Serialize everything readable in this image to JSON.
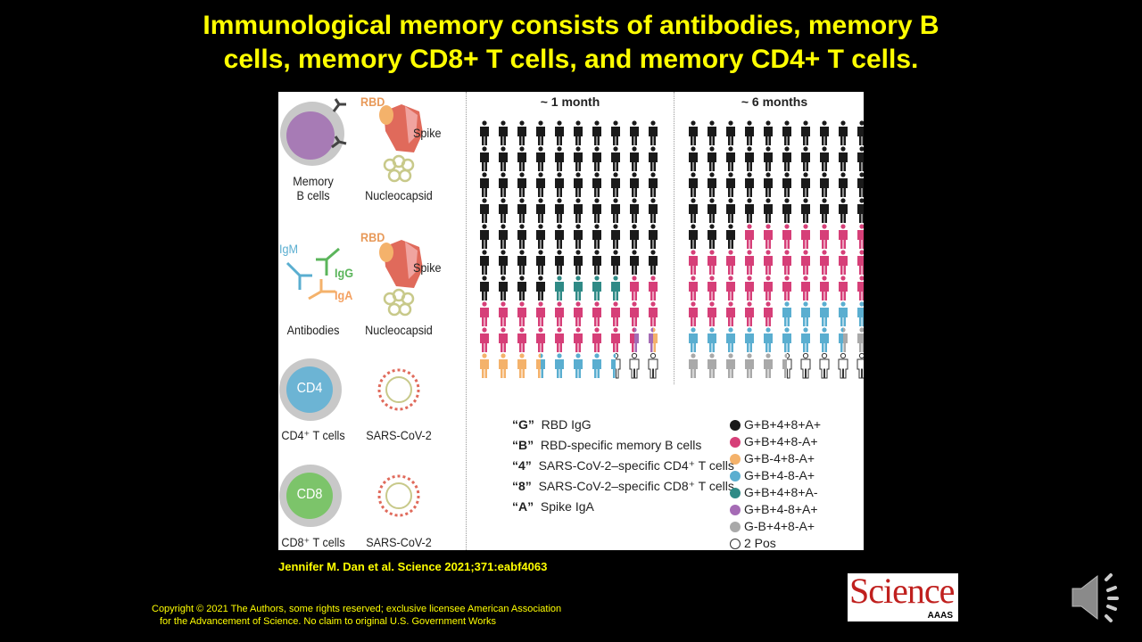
{
  "slide": {
    "title_line1": "Immunological memory consists of antibodies, memory B",
    "title_line2": "cells, memory CD8+ T cells, and memory CD4+ T cells.",
    "citation": "Jennifer M. Dan et al. Science 2021;371:eabf4063",
    "copyright_line1": "Copyright © 2021 The Authors, some rights reserved; exclusive licensee American Association",
    "copyright_line2": "for the Advancement of Science. No claim to original U.S. Government Works",
    "logo_text": "Science",
    "logo_sub": "AAAS",
    "audio_icon": "speaker-icon"
  },
  "left_panel": {
    "memory_b_line1": "Memory",
    "memory_b_line2": "B cells",
    "rbd": "RBD",
    "spike": "Spike",
    "nucleocapsid": "Nucleocapsid",
    "igm": "IgM",
    "igg": "IgG",
    "iga": "IgA",
    "antibodies": "Antibodies",
    "cd4": "CD4",
    "cd4_label": "CD4⁺ T cells",
    "cd8": "CD8",
    "cd8_label": "CD8⁺ T cells",
    "virus": "SARS-CoV-2"
  },
  "colors": {
    "K": "#1a1a1a",
    "P": "#d63f78",
    "O": "#f4b26b",
    "B": "#5aaed0",
    "T": "#2f8a86",
    "V": "#a56bb5",
    "G": "#a9a9a9",
    "W": "#ffffff"
  },
  "grids": [
    {
      "label": "~ 1 month",
      "rows": [
        [
          "K",
          "K",
          "K",
          "K",
          "K",
          "K",
          "K",
          "K",
          "K",
          "K"
        ],
        [
          "K",
          "K",
          "K",
          "K",
          "K",
          "K",
          "K",
          "K",
          "K",
          "K"
        ],
        [
          "K",
          "K",
          "K",
          "K",
          "K",
          "K",
          "K",
          "K",
          "K",
          "K"
        ],
        [
          "K",
          "K",
          "K",
          "K",
          "K",
          "K",
          "K",
          "K",
          "K",
          "K"
        ],
        [
          "K",
          "K",
          "K",
          "K",
          "K",
          "K",
          "K",
          "K",
          "K",
          "K"
        ],
        [
          "K",
          "K",
          "K",
          "K",
          "K",
          "K",
          "K",
          "K",
          "K",
          "K"
        ],
        [
          "K",
          "K",
          "K",
          "K",
          "T",
          "T",
          "T",
          "T",
          "P",
          "P"
        ],
        [
          "P",
          "P",
          "P",
          "P",
          "P",
          "P",
          "P",
          "P",
          "P",
          "P"
        ],
        [
          "P",
          "P",
          "P",
          "P",
          "P",
          "P",
          "P",
          "P",
          "P/V",
          "V/O"
        ],
        [
          "O",
          "O",
          "O",
          "O/B",
          "B",
          "B",
          "B",
          "B/W",
          "W",
          "W"
        ]
      ]
    },
    {
      "label": "~ 6 months",
      "rows": [
        [
          "K",
          "K",
          "K",
          "K",
          "K",
          "K",
          "K",
          "K",
          "K",
          "K"
        ],
        [
          "K",
          "K",
          "K",
          "K",
          "K",
          "K",
          "K",
          "K",
          "K",
          "K"
        ],
        [
          "K",
          "K",
          "K",
          "K",
          "K",
          "K",
          "K",
          "K",
          "K",
          "K"
        ],
        [
          "K",
          "K",
          "K",
          "K",
          "K",
          "K",
          "K",
          "K",
          "K",
          "K"
        ],
        [
          "K",
          "K",
          "K",
          "P",
          "P",
          "P",
          "P",
          "P",
          "P",
          "P"
        ],
        [
          "P",
          "P",
          "P",
          "P",
          "P",
          "P",
          "P",
          "P",
          "P",
          "P"
        ],
        [
          "P",
          "P",
          "P",
          "P",
          "P",
          "P",
          "P",
          "P",
          "P",
          "P"
        ],
        [
          "P",
          "P",
          "P",
          "P",
          "P",
          "B",
          "B",
          "B",
          "B",
          "B"
        ],
        [
          "B",
          "B",
          "B",
          "B",
          "B",
          "B",
          "B",
          "B",
          "B/G",
          "G"
        ],
        [
          "G",
          "G",
          "G",
          "G",
          "G",
          "G/W",
          "W",
          "W",
          "W",
          "W"
        ]
      ]
    }
  ],
  "key": [
    {
      "letter": "G",
      "text": "RBD IgG"
    },
    {
      "letter": "B",
      "text": "RBD-specific memory B cells"
    },
    {
      "letter": "4",
      "text": "SARS-CoV-2–specific CD4⁺ T cells"
    },
    {
      "letter": "8",
      "text": "SARS-CoV-2–specific CD8⁺ T cells"
    },
    {
      "letter": "A",
      "text": "Spike IgA"
    }
  ],
  "legend": [
    {
      "code": "K",
      "text": "G+B+4+8+A+"
    },
    {
      "code": "P",
      "text": "G+B+4+8-A+"
    },
    {
      "code": "O",
      "text": "G+B-4+8-A+"
    },
    {
      "code": "B",
      "text": "G+B+4-8-A+"
    },
    {
      "code": "T",
      "text": "G+B+4+8+A-"
    },
    {
      "code": "V",
      "text": "G+B+4-8+A+"
    },
    {
      "code": "G",
      "text": "G-B+4+8-A+"
    },
    {
      "code": "W",
      "text": "2 Pos"
    }
  ]
}
